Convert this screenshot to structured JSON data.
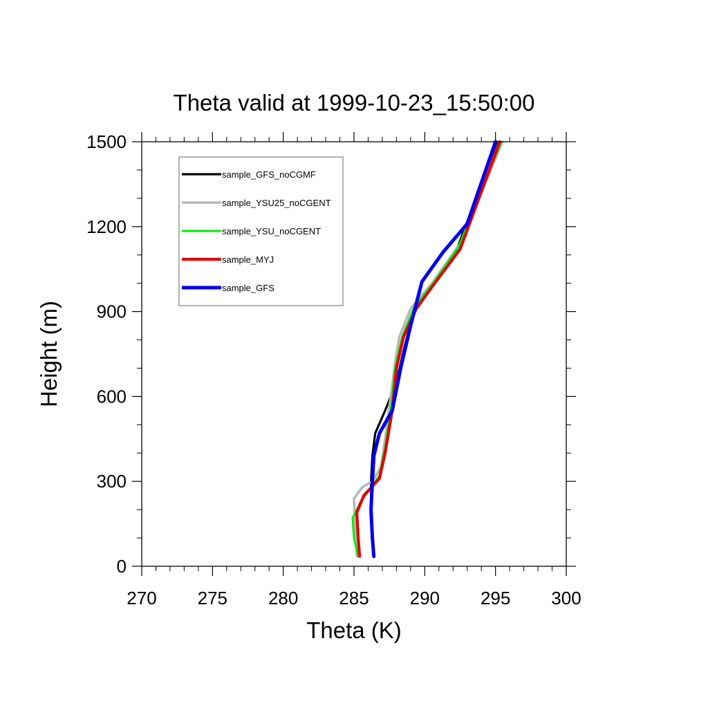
{
  "chart_data": {
    "type": "line",
    "title": "Theta valid at 1999-10-23_15:50:00",
    "xlabel": "Theta (K)",
    "ylabel": "Height (m)",
    "xlim": [
      270,
      300
    ],
    "ylim": [
      0,
      1500
    ],
    "xticks": [
      270,
      275,
      280,
      285,
      290,
      295,
      300
    ],
    "yticks": [
      0,
      300,
      600,
      900,
      1200,
      1500
    ],
    "x_tick_labels": [
      "270",
      "275",
      "280",
      "285",
      "290",
      "295",
      "300"
    ],
    "y_tick_labels": [
      "0",
      "300",
      "600",
      "900",
      "1200",
      "1500"
    ],
    "grid": false,
    "legend_position": "top-left",
    "series": [
      {
        "name": "sample_GFS_noCGMF",
        "color": "#000000",
        "points": [
          [
            286.4,
            35
          ],
          [
            286.3,
            100
          ],
          [
            286.2,
            200
          ],
          [
            286.2,
            300
          ],
          [
            286.3,
            390
          ],
          [
            286.5,
            470
          ],
          [
            287.2,
            550
          ],
          [
            288.0,
            650
          ],
          [
            288.5,
            760
          ],
          [
            289.2,
            900
          ],
          [
            290.5,
            1000
          ],
          [
            292.2,
            1110
          ],
          [
            295.1,
            1500
          ]
        ]
      },
      {
        "name": "sample_YSU25_noCGENT",
        "color": "#b8b8b8",
        "points": [
          [
            285.2,
            35
          ],
          [
            285.1,
            120
          ],
          [
            285.0,
            240
          ],
          [
            285.6,
            280
          ],
          [
            286.3,
            300
          ],
          [
            286.9,
            350
          ],
          [
            287.2,
            450
          ],
          [
            287.6,
            600
          ],
          [
            287.9,
            720
          ],
          [
            288.2,
            810
          ],
          [
            289.0,
            910
          ],
          [
            290.5,
            1000
          ],
          [
            292.5,
            1140
          ],
          [
            295.5,
            1500
          ]
        ]
      },
      {
        "name": "sample_YSU_noCGENT",
        "color": "#00ee00",
        "points": [
          [
            285.3,
            35
          ],
          [
            285.0,
            100
          ],
          [
            284.9,
            170
          ],
          [
            285.5,
            230
          ],
          [
            286.8,
            320
          ],
          [
            287.2,
            420
          ],
          [
            287.6,
            550
          ],
          [
            287.9,
            700
          ],
          [
            288.4,
            810
          ],
          [
            289.2,
            910
          ],
          [
            290.6,
            1000
          ],
          [
            292.4,
            1130
          ],
          [
            295.4,
            1500
          ]
        ]
      },
      {
        "name": "sample_MYJ",
        "color": "#e10000",
        "points": [
          [
            285.4,
            35
          ],
          [
            285.3,
            100
          ],
          [
            285.2,
            190
          ],
          [
            285.7,
            250
          ],
          [
            286.8,
            310
          ],
          [
            287.2,
            400
          ],
          [
            287.7,
            550
          ],
          [
            288.0,
            700
          ],
          [
            288.5,
            810
          ],
          [
            289.4,
            910
          ],
          [
            290.7,
            1000
          ],
          [
            292.5,
            1120
          ],
          [
            295.3,
            1500
          ]
        ]
      },
      {
        "name": "sample_GFS",
        "color": "#0000ee",
        "points": [
          [
            286.4,
            35
          ],
          [
            286.3,
            100
          ],
          [
            286.2,
            200
          ],
          [
            286.3,
            300
          ],
          [
            286.4,
            390
          ],
          [
            286.8,
            470
          ],
          [
            287.7,
            550
          ],
          [
            288.3,
            700
          ],
          [
            289.0,
            850
          ],
          [
            289.8,
            1005
          ],
          [
            291.3,
            1110
          ],
          [
            293.0,
            1210
          ],
          [
            295.0,
            1500
          ]
        ]
      }
    ]
  }
}
